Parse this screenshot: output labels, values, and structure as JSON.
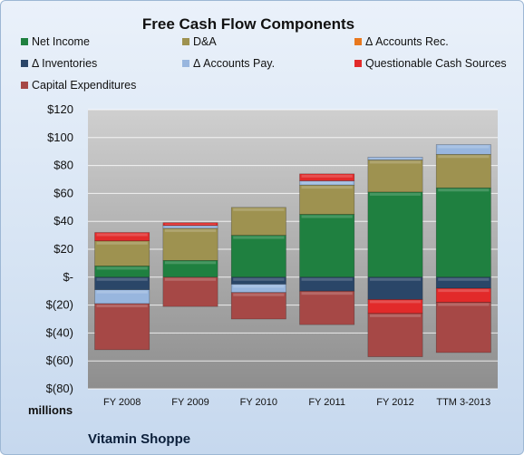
{
  "chart_data": {
    "type": "bar",
    "stacked": true,
    "title": "Free Cash Flow Components",
    "company": "Vitamin Shoppe",
    "units_label": "millions",
    "categories": [
      "FY 2008",
      "FY 2009",
      "FY 2010",
      "FY 2011",
      "FY 2012",
      "TTM 3-2013"
    ],
    "ylim": [
      -80,
      120
    ],
    "yticks": [
      120,
      100,
      80,
      60,
      40,
      20,
      0,
      -20,
      -40,
      -60,
      -80
    ],
    "ytick_labels": [
      "$120",
      "$100",
      "$80",
      "$60",
      "$40",
      "$20",
      "$-",
      "$(20)",
      "$(40)",
      "$(60)",
      "$(80)"
    ],
    "grid": true,
    "legend_position": "top",
    "series": [
      {
        "name": "Net Income",
        "color": "#1f8040",
        "values": [
          8,
          12,
          30,
          45,
          61,
          64
        ]
      },
      {
        "name": "D&A",
        "color": "#9e9250",
        "values": [
          18,
          23,
          20,
          21,
          23,
          24
        ]
      },
      {
        "name": "Δ Accounts Rec.",
        "color": "#e8781e",
        "values": [
          0,
          0,
          0,
          0,
          0,
          0
        ]
      },
      {
        "name": "Δ Inventories",
        "color": "#2a4668",
        "values": [
          -9,
          0,
          -5,
          -10,
          -16,
          -8
        ]
      },
      {
        "name": "Δ Accounts Pay.",
        "color": "#98b6de",
        "values": [
          -10,
          2,
          -6,
          3,
          2,
          7
        ]
      },
      {
        "name": "Questionable Cash Sources",
        "color": "#e22a2a",
        "values": [
          6,
          2,
          0,
          5,
          -10,
          -10
        ]
      },
      {
        "name": "Capital Expenditures",
        "color": "#a64846",
        "values": [
          -33,
          -21,
          -19,
          -24,
          -31,
          -36
        ]
      }
    ]
  }
}
